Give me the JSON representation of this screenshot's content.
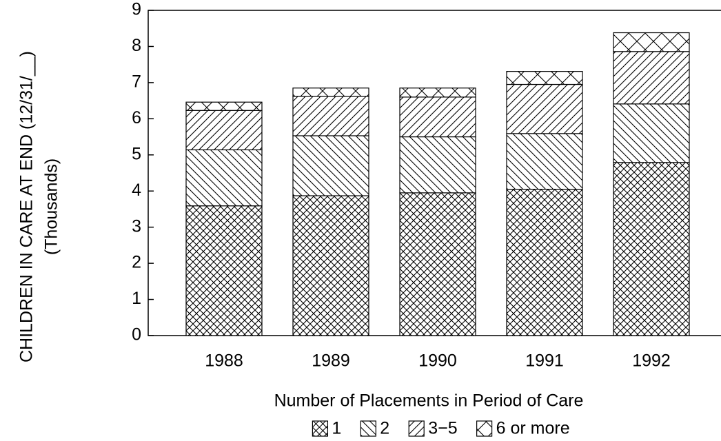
{
  "chart_data": {
    "type": "stacked-bar",
    "ylabel": [
      "CHILDREN IN CARE AT END (12/31/__)",
      "(Thousands)"
    ],
    "xlabel": "Number of Placements in Period of Care",
    "categories": [
      "1988",
      "1989",
      "1990",
      "1991",
      "1992"
    ],
    "series": [
      {
        "name": "1",
        "color": "#000000",
        "hatch": "cross",
        "values": [
          3.59,
          3.87,
          3.95,
          4.05,
          4.79
        ]
      },
      {
        "name": "2",
        "color": "#000000",
        "hatch": "backslash",
        "values": [
          1.55,
          1.66,
          1.55,
          1.54,
          1.62
        ]
      },
      {
        "name": "3−5",
        "color": "#000000",
        "hatch": "slash",
        "values": [
          1.09,
          1.09,
          1.1,
          1.36,
          1.45
        ]
      },
      {
        "name": "6 or more",
        "color": "#000000",
        "hatch": "bigx",
        "values": [
          0.23,
          0.23,
          0.25,
          0.36,
          0.52
        ]
      }
    ],
    "ylim": [
      0,
      9
    ],
    "yticks": [
      0,
      1,
      2,
      3,
      4,
      5,
      6,
      7,
      8,
      9
    ]
  }
}
